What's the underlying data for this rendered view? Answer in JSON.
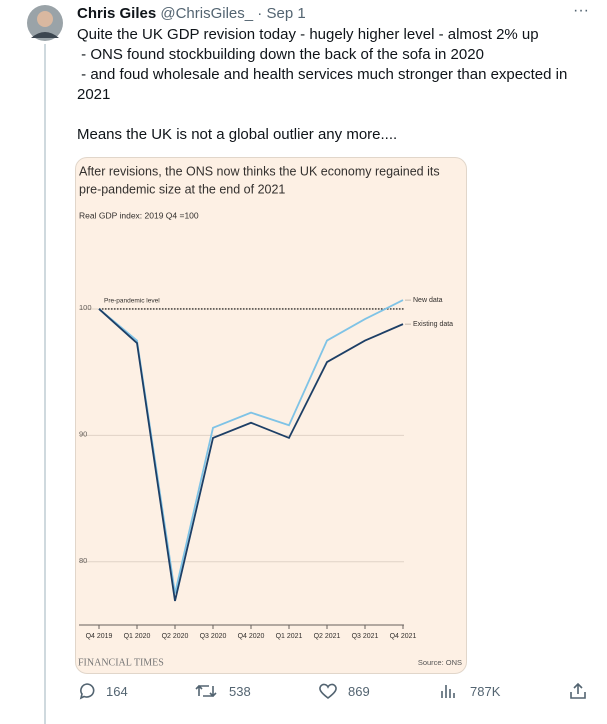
{
  "tweet": {
    "name": "Chris Giles",
    "handle": "@ChrisGiles_",
    "time": "Sep 1",
    "lines": [
      "Quite the UK GDP revision today - hugely higher level - almost 2% up",
      " - ONS found stockbuilding down the back of the sofa in 2020",
      " - and foud wholesale and health services much stronger than expected in 2021"
    ],
    "closing": "Means the UK is not a global outlier any more....",
    "stats": {
      "replies": "164",
      "retweets": "538",
      "likes": "869",
      "views": "787K"
    }
  },
  "chart_data": {
    "type": "line",
    "title": "After revisions, the ONS now thinks the UK economy regained its pre-pandemic size at the end of 2021",
    "subtitle": "Real GDP index: 2019 Q4 =100",
    "categories": [
      "Q4 2019",
      "Q1 2020",
      "Q2 2020",
      "Q3 2020",
      "Q4 2020",
      "Q1 2021",
      "Q2 2021",
      "Q3 2021",
      "Q4 2021"
    ],
    "series": [
      {
        "name": "New data",
        "color": "#7fc3e6",
        "values": [
          100,
          97.5,
          77.5,
          90.6,
          91.8,
          90.8,
          97.5,
          99.2,
          100.7
        ]
      },
      {
        "name": "Existing data",
        "color": "#1d3f66",
        "values": [
          100,
          97.3,
          76.9,
          89.8,
          91,
          89.8,
          95.8,
          97.5,
          98.8
        ]
      }
    ],
    "reference_line": {
      "value": 100,
      "label": "Pre-pandemic level"
    },
    "ylim": [
      75,
      101.5
    ],
    "yticks": [
      80,
      90,
      100
    ],
    "grid": true,
    "source": "Source: ONS",
    "logo": "FINANCIAL TIMES"
  }
}
